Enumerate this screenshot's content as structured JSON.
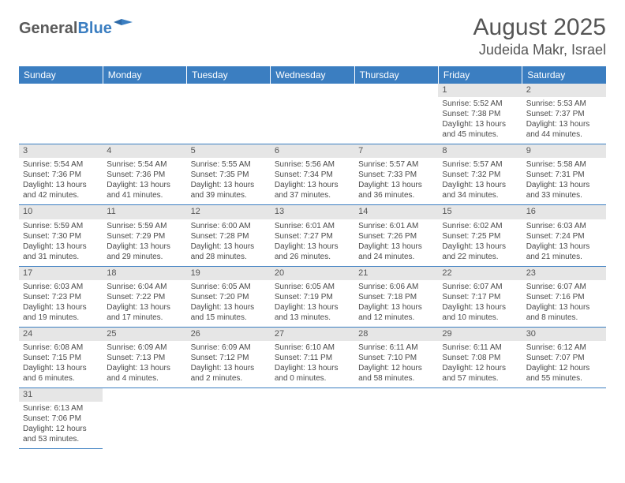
{
  "logo": {
    "text1": "General",
    "text2": "Blue"
  },
  "title": "August 2025",
  "location": "Judeida Makr, Israel",
  "colors": {
    "headerBg": "#3b7ec1",
    "headerText": "#ffffff",
    "dayBarBg": "#e6e6e6",
    "textGray": "#555555",
    "cellBorder": "#3b7ec1"
  },
  "dayNames": [
    "Sunday",
    "Monday",
    "Tuesday",
    "Wednesday",
    "Thursday",
    "Friday",
    "Saturday"
  ],
  "weeks": [
    [
      {
        "empty": true
      },
      {
        "empty": true
      },
      {
        "empty": true
      },
      {
        "empty": true
      },
      {
        "empty": true
      },
      {
        "day": "1",
        "sunrise": "Sunrise: 5:52 AM",
        "sunset": "Sunset: 7:38 PM",
        "dl1": "Daylight: 13 hours",
        "dl2": "and 45 minutes."
      },
      {
        "day": "2",
        "sunrise": "Sunrise: 5:53 AM",
        "sunset": "Sunset: 7:37 PM",
        "dl1": "Daylight: 13 hours",
        "dl2": "and 44 minutes."
      }
    ],
    [
      {
        "day": "3",
        "sunrise": "Sunrise: 5:54 AM",
        "sunset": "Sunset: 7:36 PM",
        "dl1": "Daylight: 13 hours",
        "dl2": "and 42 minutes."
      },
      {
        "day": "4",
        "sunrise": "Sunrise: 5:54 AM",
        "sunset": "Sunset: 7:36 PM",
        "dl1": "Daylight: 13 hours",
        "dl2": "and 41 minutes."
      },
      {
        "day": "5",
        "sunrise": "Sunrise: 5:55 AM",
        "sunset": "Sunset: 7:35 PM",
        "dl1": "Daylight: 13 hours",
        "dl2": "and 39 minutes."
      },
      {
        "day": "6",
        "sunrise": "Sunrise: 5:56 AM",
        "sunset": "Sunset: 7:34 PM",
        "dl1": "Daylight: 13 hours",
        "dl2": "and 37 minutes."
      },
      {
        "day": "7",
        "sunrise": "Sunrise: 5:57 AM",
        "sunset": "Sunset: 7:33 PM",
        "dl1": "Daylight: 13 hours",
        "dl2": "and 36 minutes."
      },
      {
        "day": "8",
        "sunrise": "Sunrise: 5:57 AM",
        "sunset": "Sunset: 7:32 PM",
        "dl1": "Daylight: 13 hours",
        "dl2": "and 34 minutes."
      },
      {
        "day": "9",
        "sunrise": "Sunrise: 5:58 AM",
        "sunset": "Sunset: 7:31 PM",
        "dl1": "Daylight: 13 hours",
        "dl2": "and 33 minutes."
      }
    ],
    [
      {
        "day": "10",
        "sunrise": "Sunrise: 5:59 AM",
        "sunset": "Sunset: 7:30 PM",
        "dl1": "Daylight: 13 hours",
        "dl2": "and 31 minutes."
      },
      {
        "day": "11",
        "sunrise": "Sunrise: 5:59 AM",
        "sunset": "Sunset: 7:29 PM",
        "dl1": "Daylight: 13 hours",
        "dl2": "and 29 minutes."
      },
      {
        "day": "12",
        "sunrise": "Sunrise: 6:00 AM",
        "sunset": "Sunset: 7:28 PM",
        "dl1": "Daylight: 13 hours",
        "dl2": "and 28 minutes."
      },
      {
        "day": "13",
        "sunrise": "Sunrise: 6:01 AM",
        "sunset": "Sunset: 7:27 PM",
        "dl1": "Daylight: 13 hours",
        "dl2": "and 26 minutes."
      },
      {
        "day": "14",
        "sunrise": "Sunrise: 6:01 AM",
        "sunset": "Sunset: 7:26 PM",
        "dl1": "Daylight: 13 hours",
        "dl2": "and 24 minutes."
      },
      {
        "day": "15",
        "sunrise": "Sunrise: 6:02 AM",
        "sunset": "Sunset: 7:25 PM",
        "dl1": "Daylight: 13 hours",
        "dl2": "and 22 minutes."
      },
      {
        "day": "16",
        "sunrise": "Sunrise: 6:03 AM",
        "sunset": "Sunset: 7:24 PM",
        "dl1": "Daylight: 13 hours",
        "dl2": "and 21 minutes."
      }
    ],
    [
      {
        "day": "17",
        "sunrise": "Sunrise: 6:03 AM",
        "sunset": "Sunset: 7:23 PM",
        "dl1": "Daylight: 13 hours",
        "dl2": "and 19 minutes."
      },
      {
        "day": "18",
        "sunrise": "Sunrise: 6:04 AM",
        "sunset": "Sunset: 7:22 PM",
        "dl1": "Daylight: 13 hours",
        "dl2": "and 17 minutes."
      },
      {
        "day": "19",
        "sunrise": "Sunrise: 6:05 AM",
        "sunset": "Sunset: 7:20 PM",
        "dl1": "Daylight: 13 hours",
        "dl2": "and 15 minutes."
      },
      {
        "day": "20",
        "sunrise": "Sunrise: 6:05 AM",
        "sunset": "Sunset: 7:19 PM",
        "dl1": "Daylight: 13 hours",
        "dl2": "and 13 minutes."
      },
      {
        "day": "21",
        "sunrise": "Sunrise: 6:06 AM",
        "sunset": "Sunset: 7:18 PM",
        "dl1": "Daylight: 13 hours",
        "dl2": "and 12 minutes."
      },
      {
        "day": "22",
        "sunrise": "Sunrise: 6:07 AM",
        "sunset": "Sunset: 7:17 PM",
        "dl1": "Daylight: 13 hours",
        "dl2": "and 10 minutes."
      },
      {
        "day": "23",
        "sunrise": "Sunrise: 6:07 AM",
        "sunset": "Sunset: 7:16 PM",
        "dl1": "Daylight: 13 hours",
        "dl2": "and 8 minutes."
      }
    ],
    [
      {
        "day": "24",
        "sunrise": "Sunrise: 6:08 AM",
        "sunset": "Sunset: 7:15 PM",
        "dl1": "Daylight: 13 hours",
        "dl2": "and 6 minutes."
      },
      {
        "day": "25",
        "sunrise": "Sunrise: 6:09 AM",
        "sunset": "Sunset: 7:13 PM",
        "dl1": "Daylight: 13 hours",
        "dl2": "and 4 minutes."
      },
      {
        "day": "26",
        "sunrise": "Sunrise: 6:09 AM",
        "sunset": "Sunset: 7:12 PM",
        "dl1": "Daylight: 13 hours",
        "dl2": "and 2 minutes."
      },
      {
        "day": "27",
        "sunrise": "Sunrise: 6:10 AM",
        "sunset": "Sunset: 7:11 PM",
        "dl1": "Daylight: 13 hours",
        "dl2": "and 0 minutes."
      },
      {
        "day": "28",
        "sunrise": "Sunrise: 6:11 AM",
        "sunset": "Sunset: 7:10 PM",
        "dl1": "Daylight: 12 hours",
        "dl2": "and 58 minutes."
      },
      {
        "day": "29",
        "sunrise": "Sunrise: 6:11 AM",
        "sunset": "Sunset: 7:08 PM",
        "dl1": "Daylight: 12 hours",
        "dl2": "and 57 minutes."
      },
      {
        "day": "30",
        "sunrise": "Sunrise: 6:12 AM",
        "sunset": "Sunset: 7:07 PM",
        "dl1": "Daylight: 12 hours",
        "dl2": "and 55 minutes."
      }
    ],
    [
      {
        "day": "31",
        "sunrise": "Sunrise: 6:13 AM",
        "sunset": "Sunset: 7:06 PM",
        "dl1": "Daylight: 12 hours",
        "dl2": "and 53 minutes."
      },
      {
        "empty": true
      },
      {
        "empty": true
      },
      {
        "empty": true
      },
      {
        "empty": true
      },
      {
        "empty": true
      },
      {
        "empty": true
      }
    ]
  ]
}
